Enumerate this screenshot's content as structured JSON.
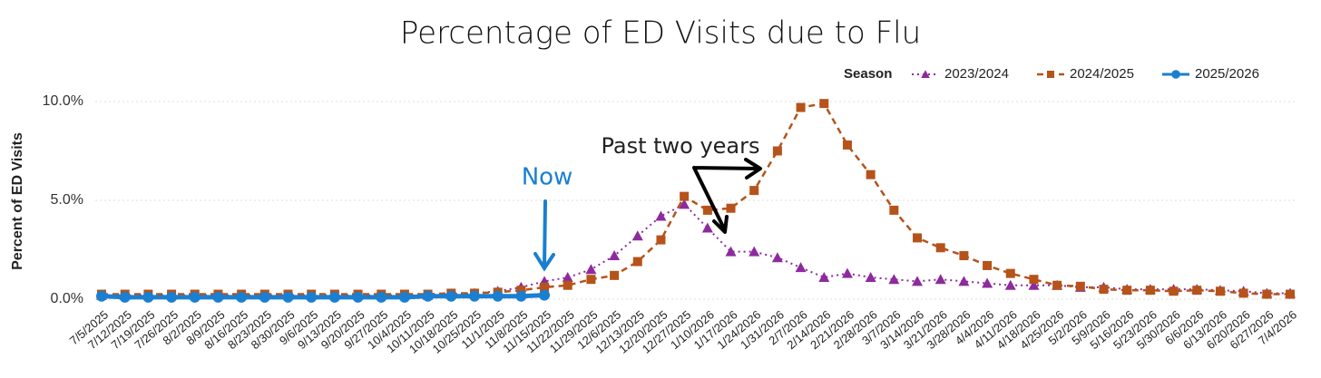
{
  "chart_data": {
    "type": "line",
    "title": "Percentage of ED Visits due to Flu",
    "y_label": "Percent of ED Visits",
    "legend_title": "Season",
    "annotations": [
      "Now",
      "Past two years"
    ],
    "categories": [
      "7/5/2025",
      "7/12/2025",
      "7/19/2025",
      "7/26/2025",
      "8/2/2025",
      "8/9/2025",
      "8/16/2025",
      "8/23/2025",
      "8/30/2025",
      "9/6/2025",
      "9/13/2025",
      "9/20/2025",
      "9/27/2025",
      "10/4/2025",
      "10/11/2025",
      "10/18/2025",
      "10/25/2025",
      "11/1/2025",
      "11/8/2025",
      "11/15/2025",
      "11/22/2025",
      "11/29/2025",
      "12/6/2025",
      "12/13/2025",
      "12/20/2025",
      "12/27/2025",
      "1/10/2026",
      "1/17/2026",
      "1/24/2026",
      "1/31/2026",
      "2/7/2026",
      "2/14/2026",
      "2/21/2026",
      "2/28/2026",
      "3/7/2026",
      "3/14/2026",
      "3/21/2026",
      "3/28/2026",
      "4/4/2026",
      "4/11/2026",
      "4/18/2026",
      "4/25/2026",
      "5/2/2026",
      "5/9/2026",
      "5/16/2026",
      "5/23/2026",
      "5/30/2026",
      "6/6/2026",
      "6/13/2026",
      "6/20/2026",
      "6/27/2026",
      "7/4/2026"
    ],
    "series": [
      {
        "name": "2023/2024",
        "color": "#8e2a9e",
        "marker": "triangle",
        "dash": "dotted",
        "values": [
          0.2,
          0.2,
          0.2,
          0.2,
          0.2,
          0.2,
          0.2,
          0.2,
          0.2,
          0.2,
          0.2,
          0.2,
          0.2,
          0.2,
          0.2,
          0.25,
          0.3,
          0.4,
          0.6,
          0.9,
          1.1,
          1.5,
          2.2,
          3.2,
          4.2,
          4.8,
          3.6,
          2.4,
          2.4,
          2.1,
          1.6,
          1.1,
          1.3,
          1.1,
          1.0,
          0.9,
          1.0,
          0.9,
          0.8,
          0.7,
          0.7,
          0.7,
          0.6,
          0.6,
          0.5,
          0.5,
          0.5,
          0.5,
          0.45,
          0.4,
          0.3,
          0.3
        ]
      },
      {
        "name": "2024/2025",
        "color": "#b5531a",
        "marker": "square",
        "dash": "dashed",
        "values": [
          0.25,
          0.25,
          0.25,
          0.25,
          0.25,
          0.25,
          0.25,
          0.25,
          0.25,
          0.25,
          0.25,
          0.25,
          0.25,
          0.25,
          0.25,
          0.3,
          0.3,
          0.35,
          0.45,
          0.6,
          0.7,
          1.0,
          1.2,
          1.9,
          3.0,
          5.2,
          4.5,
          4.6,
          5.5,
          7.5,
          9.7,
          9.9,
          7.8,
          6.3,
          4.5,
          3.1,
          2.6,
          2.2,
          1.7,
          1.3,
          1.0,
          0.7,
          0.65,
          0.5,
          0.45,
          0.45,
          0.4,
          0.45,
          0.4,
          0.3,
          0.25,
          0.25
        ]
      },
      {
        "name": "2025/2026",
        "color": "#1a7fd1",
        "marker": "circle",
        "dash": "solid",
        "values": [
          0.15,
          0.1,
          0.1,
          0.1,
          0.1,
          0.1,
          0.1,
          0.1,
          0.1,
          0.1,
          0.1,
          0.1,
          0.1,
          0.1,
          0.15,
          0.15,
          0.15,
          0.15,
          0.15,
          0.2,
          null,
          null,
          null,
          null,
          null,
          null,
          null,
          null,
          null,
          null,
          null,
          null,
          null,
          null,
          null,
          null,
          null,
          null,
          null,
          null,
          null,
          null,
          null,
          null,
          null,
          null,
          null,
          null,
          null,
          null,
          null,
          null
        ]
      }
    ],
    "ylim": [
      -0.5,
      10.5
    ],
    "yticks": [
      {
        "value": 0,
        "label": "0.0%"
      },
      {
        "value": 5,
        "label": "5.0%"
      },
      {
        "value": 10,
        "label": "10.0%"
      }
    ],
    "grid": true,
    "legend": "top-right"
  }
}
